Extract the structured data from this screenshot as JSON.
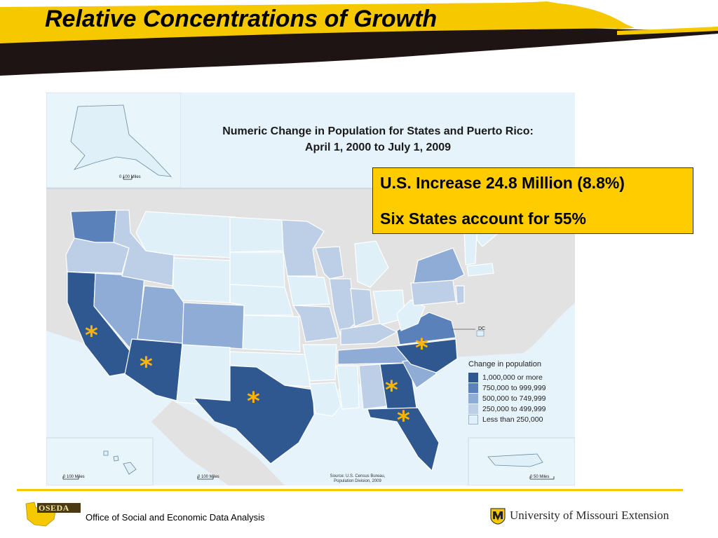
{
  "slide": {
    "title": "Relative Concentrations of Growth",
    "footer_org": "Office of Social and Economic Data Analysis",
    "footer_logo_text": "OSEDA",
    "footer_university": "University of Missouri Extension"
  },
  "map": {
    "title_line1": "Numeric Change in Population for States and Puerto Rico:",
    "title_line2": "April 1, 2000 to July 1, 2009",
    "source_line1": "Source: U.S. Census Bureau,",
    "source_line2": "Population Division, 2009",
    "dc_label": "DC",
    "scale_alaska": "0   100 Miles",
    "scale_hawaii": "0      100 Miles",
    "scale_conus": "0      100 Miles",
    "scale_pr": "0         50 Miles",
    "legend": {
      "title": "Change in population",
      "items": [
        {
          "label": "1,000,000 or more",
          "color": "#2f5890"
        },
        {
          "label": "750,000 to 999,999",
          "color": "#5b81bb"
        },
        {
          "label": "500,000 to 749,999",
          "color": "#8eacd6"
        },
        {
          "label": "250,000 to 499,999",
          "color": "#bccfe7"
        },
        {
          "label": "Less than 250,000",
          "color": "#dff0f8"
        }
      ]
    }
  },
  "callout": {
    "line1": "U.S. Increase 24.8 Million (8.8%)",
    "line2": "Six States account for 55%"
  },
  "highlight_marker": "*",
  "colors": {
    "accent_yellow": "#f5c800",
    "callout_bg": "#ffcc00",
    "star": "#ffb400",
    "water": "#e6f3fb",
    "neighbor_land": "#e2e2e2"
  }
}
